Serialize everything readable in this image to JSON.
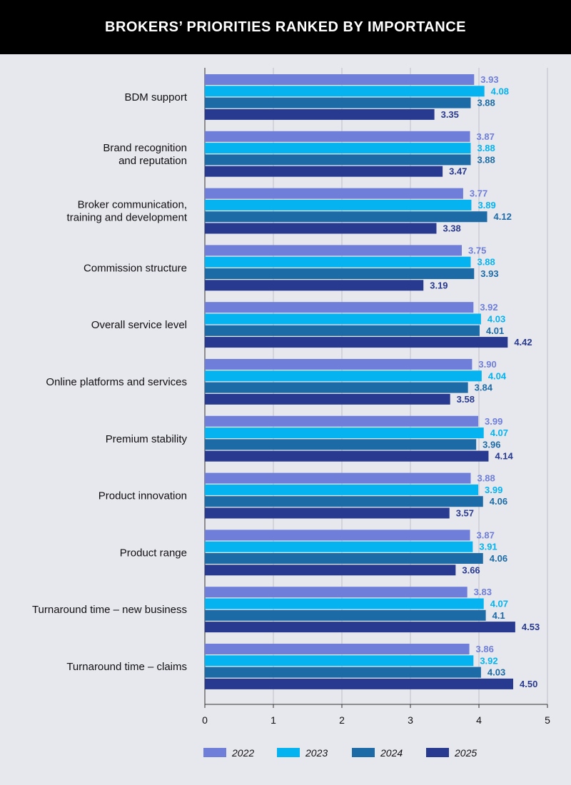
{
  "header": {
    "title": "BROKERS’ PRIORITIES RANKED BY IMPORTANCE"
  },
  "chart_data": {
    "type": "bar",
    "orientation": "horizontal",
    "title": "BROKERS’ PRIORITIES RANKED BY IMPORTANCE",
    "categories": [
      [
        "BDM support"
      ],
      [
        "Brand recognition",
        "and reputation"
      ],
      [
        "Broker communication,",
        "training and development"
      ],
      [
        "Commission structure"
      ],
      [
        "Overall service level"
      ],
      [
        "Online platforms and services"
      ],
      [
        "Premium stability"
      ],
      [
        "Product innovation"
      ],
      [
        "Product range"
      ],
      [
        "Turnaround time – new business"
      ],
      [
        "Turnaround time – claims"
      ]
    ],
    "series": [
      {
        "name": "2022",
        "color": "#6f7fd9",
        "values": [
          3.93,
          3.87,
          3.77,
          3.75,
          3.92,
          3.9,
          3.99,
          3.88,
          3.87,
          3.83,
          3.86
        ],
        "labels": [
          "3.93",
          "3.87",
          "3.77",
          "3.75",
          "3.92",
          "3.90",
          "3.99",
          "3.88",
          "3.87",
          "3.83",
          "3.86"
        ]
      },
      {
        "name": "2023",
        "color": "#04b3ef",
        "values": [
          4.08,
          3.88,
          3.89,
          3.88,
          4.03,
          4.04,
          4.07,
          3.99,
          3.91,
          4.07,
          3.92
        ],
        "labels": [
          "4.08",
          "3.88",
          "3.89",
          "3.88",
          "4.03",
          "4.04",
          "4.07",
          "3.99",
          "3.91",
          "4.07",
          "3.92"
        ]
      },
      {
        "name": "2024",
        "color": "#1c6ba6",
        "values": [
          3.88,
          3.88,
          4.12,
          3.93,
          4.01,
          3.84,
          3.96,
          4.06,
          4.06,
          4.1,
          4.03
        ],
        "labels": [
          "3.88",
          "3.88",
          "4.12",
          "3.93",
          "4.01",
          "3.84",
          "3.96",
          "4.06",
          "4.06",
          "4.1",
          "4.03"
        ]
      },
      {
        "name": "2025",
        "color": "#283a8f",
        "values": [
          3.35,
          3.47,
          3.38,
          3.19,
          4.42,
          3.58,
          4.14,
          3.57,
          3.66,
          4.53,
          4.5
        ],
        "labels": [
          "3.35",
          "3.47",
          "3.38",
          "3.19",
          "4.42",
          "3.58",
          "4.14",
          "3.57",
          "3.66",
          "4.53",
          "4.50"
        ]
      }
    ],
    "xlim": [
      0,
      5
    ],
    "xticks": [
      "0",
      "1",
      "2",
      "3",
      "4",
      "5"
    ],
    "grid": true,
    "legend_position": "bottom"
  }
}
